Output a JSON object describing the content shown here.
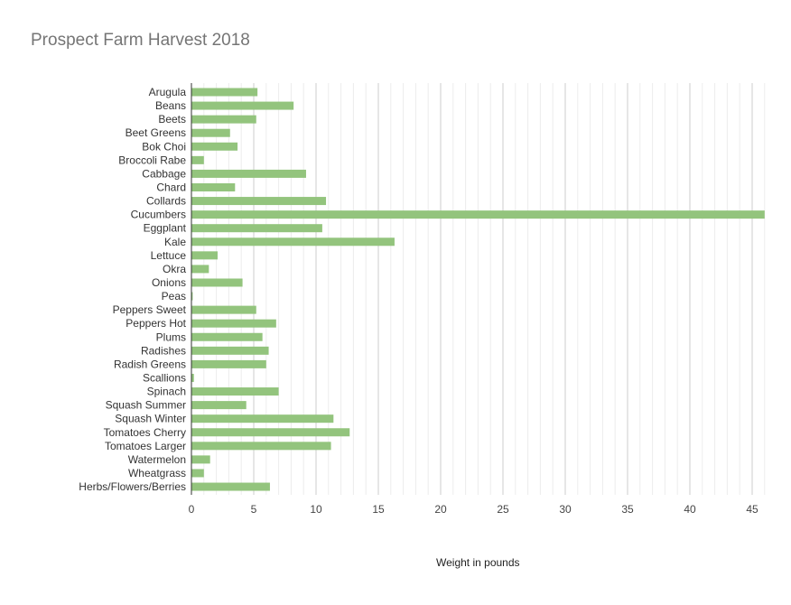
{
  "chart_data": {
    "type": "bar",
    "orientation": "horizontal",
    "title": "Prospect Farm Harvest 2018",
    "xlabel": "Weight in pounds",
    "ylabel": "",
    "xlim": [
      0,
      46
    ],
    "x_ticks": [
      0,
      5,
      10,
      15,
      20,
      25,
      30,
      35,
      40,
      45
    ],
    "minor_gridlines": true,
    "grid": true,
    "bar_color": "#93c47d",
    "categories": [
      "Arugula",
      "Beans",
      "Beets",
      "Beet Greens",
      "Bok Choi",
      "Broccoli Rabe",
      "Cabbage",
      "Chard",
      "Collards",
      "Cucumbers",
      "Eggplant",
      "Kale",
      "Lettuce",
      "Okra",
      "Onions",
      "Peas",
      "Peppers Sweet",
      "Peppers Hot",
      "Plums",
      "Radishes",
      "Radish Greens",
      "Scallions",
      "Spinach",
      "Squash Summer",
      "Squash Winter",
      "Tomatoes Cherry",
      "Tomatoes Larger",
      "Watermelon",
      "Wheatgrass",
      "Herbs/Flowers/Berries"
    ],
    "values": [
      5.3,
      8.2,
      5.2,
      3.1,
      3.7,
      1.0,
      9.2,
      3.5,
      10.8,
      46.0,
      10.5,
      16.3,
      2.1,
      1.4,
      4.1,
      0.1,
      5.2,
      6.8,
      5.7,
      6.2,
      6.0,
      0.2,
      7.0,
      4.4,
      11.4,
      12.7,
      11.2,
      1.5,
      1.0,
      6.3
    ]
  }
}
